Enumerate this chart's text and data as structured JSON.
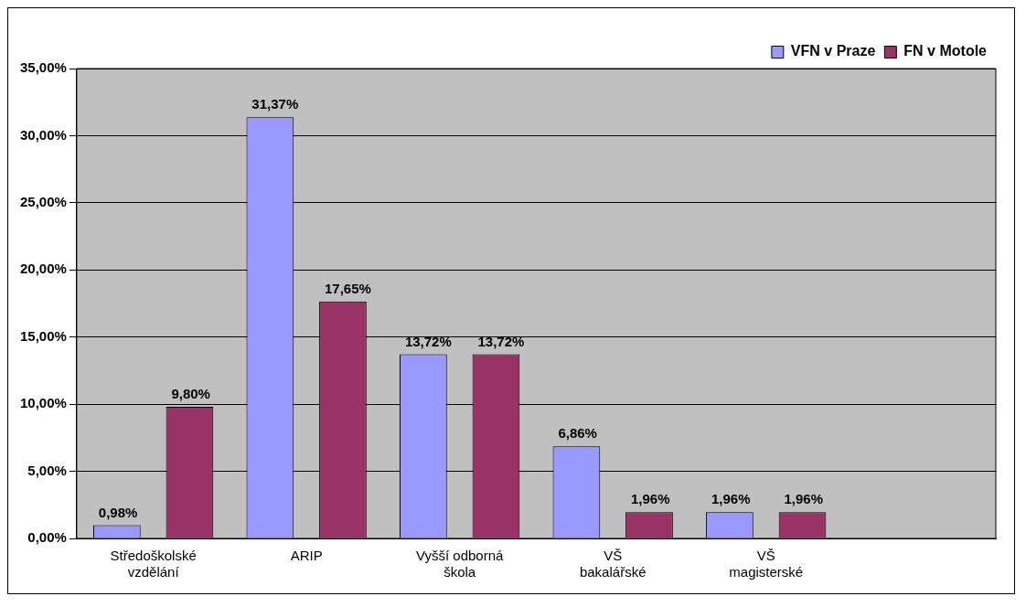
{
  "chart_data": {
    "type": "bar",
    "categories": [
      "Středoškolské vzdělání",
      "ARIP",
      "Vyšší odborná škola",
      "VŠ bakalářské",
      "VŠ magisterské",
      null
    ],
    "series": [
      {
        "name": "VFN v Praze",
        "color": "#9999ff",
        "values": [
          0.98,
          31.37,
          13.72,
          6.86,
          1.96,
          null
        ],
        "value_labels": [
          "0,98%",
          "31,37%",
          "13,72%",
          "6,86%",
          "1,96%",
          null
        ]
      },
      {
        "name": "FN v Motole",
        "color": "#993366",
        "values": [
          9.8,
          17.65,
          13.72,
          1.96,
          1.96,
          null
        ],
        "value_labels": [
          "9,80%",
          "17,65%",
          "13,72%",
          "1,96%",
          "1,96%",
          null
        ]
      }
    ],
    "ylim": [
      0,
      35
    ],
    "yticks": [
      {
        "value": 0,
        "label": "0,00%"
      },
      {
        "value": 5,
        "label": "5,00%"
      },
      {
        "value": 10,
        "label": "10,00%"
      },
      {
        "value": 15,
        "label": "15,00%"
      },
      {
        "value": 20,
        "label": "20,00%"
      },
      {
        "value": 25,
        "label": "25,00%"
      },
      {
        "value": 30,
        "label": "30,00%"
      },
      {
        "value": 35,
        "label": "35,00%"
      }
    ],
    "grid": "y",
    "legend": "top right"
  }
}
